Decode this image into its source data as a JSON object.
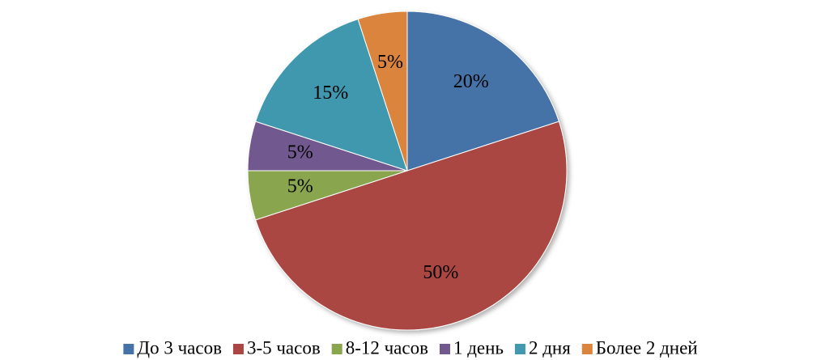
{
  "chart_data": {
    "type": "pie",
    "categories": [
      "До 3 часов",
      "3-5 часов",
      "8-12 часов",
      "1 день",
      "2 дня",
      "Более 2 дней"
    ],
    "values": [
      20,
      50,
      5,
      5,
      15,
      5
    ],
    "value_labels": [
      "20%",
      "50%",
      "5%",
      "5%",
      "15%",
      "5%"
    ],
    "colors": [
      "#4572a7",
      "#aa4643",
      "#89a54e",
      "#71588f",
      "#4198af",
      "#db843d"
    ],
    "legend": "bottom"
  }
}
